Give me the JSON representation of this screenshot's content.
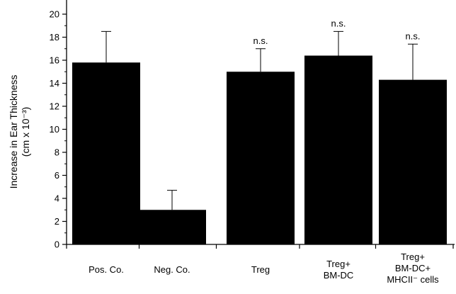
{
  "chart_data": {
    "type": "bar",
    "categories": [
      [
        "Pos. Co."
      ],
      [
        "Neg. Co."
      ],
      [
        "Treg"
      ],
      [
        "Treg+",
        "BM-DC"
      ],
      [
        "Treg+",
        "BM-DC+",
        "MHCII⁻ cells"
      ]
    ],
    "values": [
      15.8,
      3.0,
      15.0,
      16.4,
      14.3
    ],
    "errors": [
      2.7,
      1.7,
      2.0,
      2.1,
      3.1
    ],
    "annotations": [
      "",
      "",
      "n.s.",
      "n.s.",
      "n.s."
    ],
    "ylabel_lines": [
      "Increase in Ear Thickness",
      "(cm x 10⁻³)"
    ],
    "ylim": [
      0,
      21
    ],
    "yticks": [
      0,
      2,
      4,
      6,
      8,
      10,
      12,
      14,
      16,
      18,
      20
    ],
    "colors": {
      "bar": "#000000"
    }
  }
}
